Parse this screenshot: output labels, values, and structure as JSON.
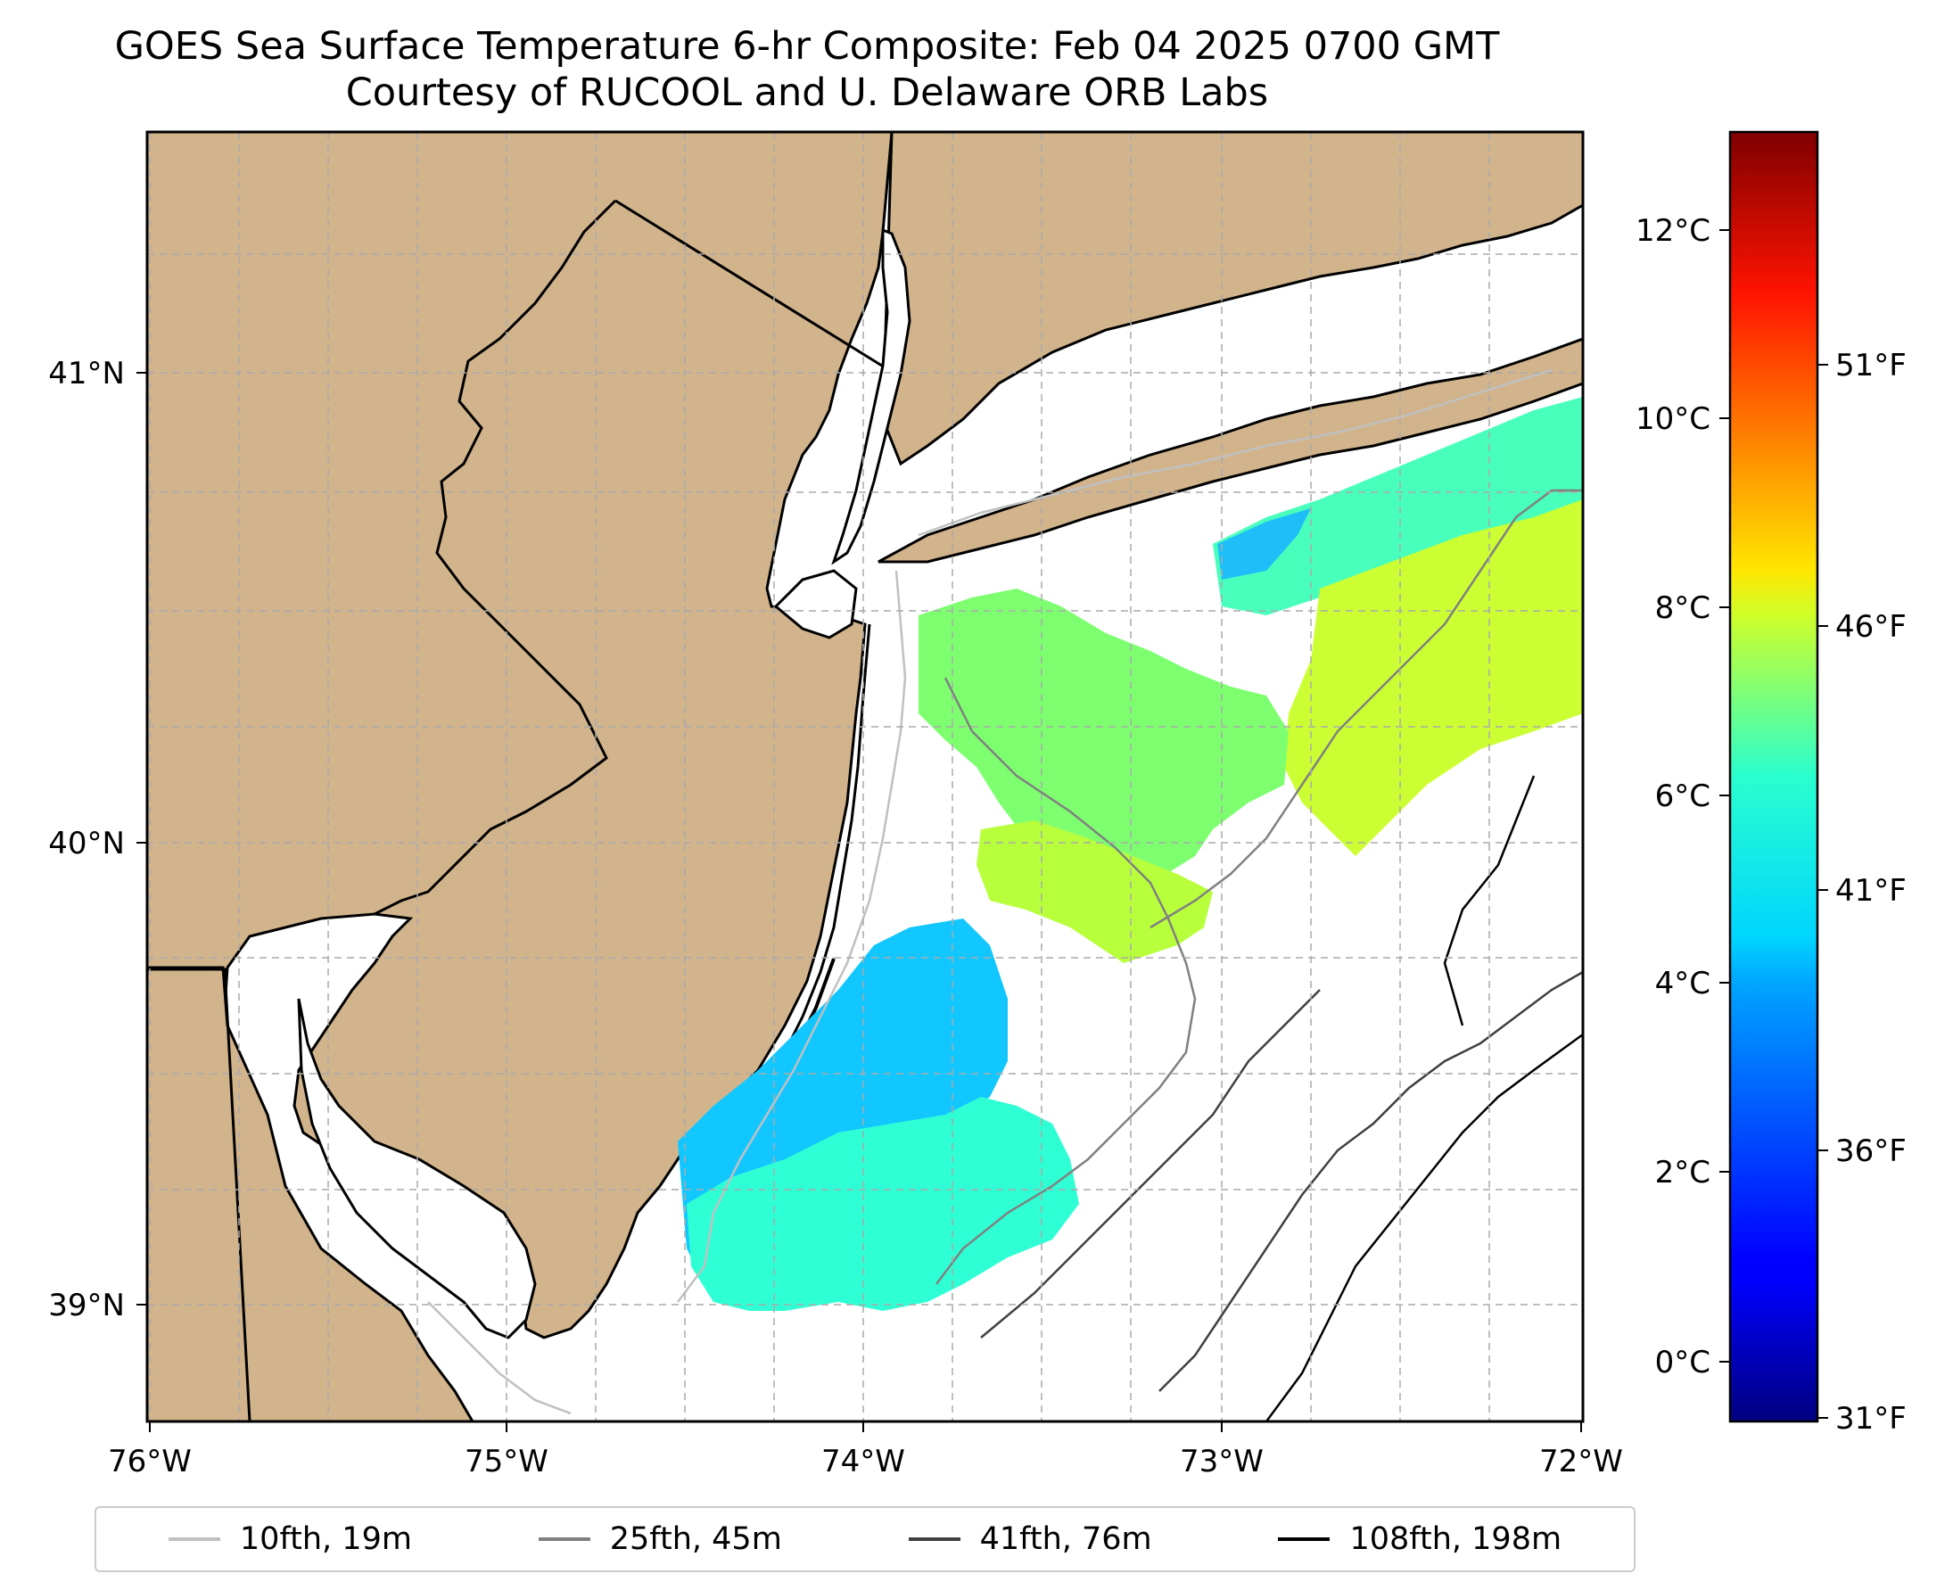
{
  "title": {
    "line1": "GOES Sea Surface Temperature 6-hr Composite: Feb 04 2025 0700 GMT",
    "line2": "Courtesy of RUCOOL and U. Delaware ORB Labs"
  },
  "map": {
    "lon_range": [
      -76,
      -72
    ],
    "lat_range": [
      38.7,
      41.5
    ],
    "land_color": "#d2b48c",
    "ocean_color": "#ffffff",
    "gridlines": true,
    "x_ticks": [
      "76°W",
      "75°W",
      "74°W",
      "73°W",
      "72°W"
    ],
    "y_ticks": [
      "39°N",
      "40°N",
      "41°N"
    ]
  },
  "colorbar": {
    "colormap": "jet",
    "celsius_ticks": [
      "0°C",
      "2°C",
      "4°C",
      "6°C",
      "8°C",
      "10°C",
      "12°C"
    ],
    "fahrenheit_ticks": [
      "31°F",
      "36°F",
      "41°F",
      "46°F",
      "51°F"
    ]
  },
  "legend": {
    "placement": "bottom",
    "items": [
      {
        "label": "10fth, 19m",
        "color": "#c0c0c0"
      },
      {
        "label": "25fth, 45m",
        "color": "#808080"
      },
      {
        "label": "41fth, 76m",
        "color": "#404040"
      },
      {
        "label": "108fth, 198m",
        "color": "#000000"
      }
    ]
  }
}
